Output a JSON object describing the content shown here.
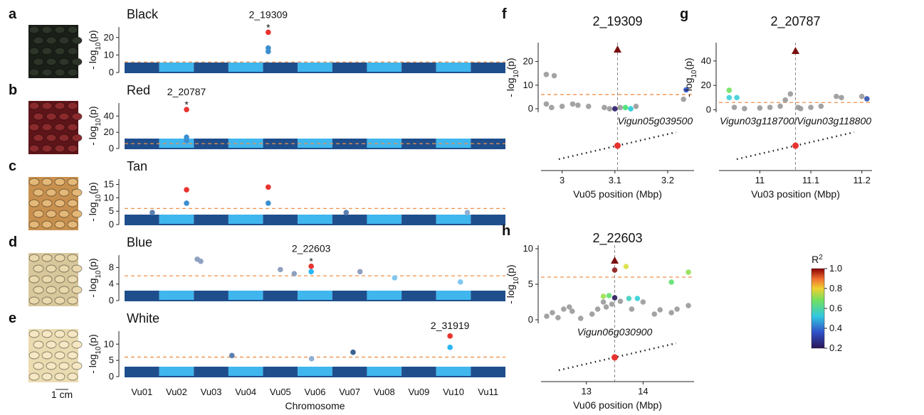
{
  "chart_data": [
    {
      "type": "manhattan",
      "panel": "a",
      "title": "Black",
      "ylabel": [
        "- log",
        "10",
        "(p)"
      ],
      "ylim": [
        0,
        26
      ],
      "yticks": [
        0,
        10,
        20
      ],
      "threshold": 6,
      "x": [
        4.15,
        4.15,
        4.15
      ],
      "values": [
        23,
        14,
        12
      ],
      "colors": [
        "#e8332e",
        "#3b8fd0",
        "#3b8fd0"
      ],
      "peak_label": "2_19309",
      "peak_marker": "*"
    },
    {
      "type": "manhattan",
      "panel": "b",
      "title": "Red",
      "ylabel": [
        "- log",
        "10",
        "(p)"
      ],
      "ylim": [
        0,
        56
      ],
      "yticks": [
        0,
        20,
        40
      ],
      "threshold": 6,
      "x": [
        1.79,
        1.79,
        1.79
      ],
      "values": [
        48,
        14,
        10
      ],
      "colors": [
        "#e8332e",
        "#3b8fd0",
        "#3b8fd0"
      ],
      "peak_label": "2_20787",
      "peak_marker": "*"
    },
    {
      "type": "manhattan",
      "panel": "c",
      "title": "Tan",
      "ylabel": [
        "- log",
        "10",
        "(p)"
      ],
      "ylim": [
        0,
        17
      ],
      "yticks": [
        0,
        5,
        10,
        15
      ],
      "threshold": 6,
      "x": [
        1.79,
        4.15,
        1.79,
        4.15,
        0.8,
        6.4,
        9.9
      ],
      "values": [
        13,
        14,
        8,
        8,
        4.5,
        4.5,
        4.5
      ],
      "colors": [
        "#e8332e",
        "#e8332e",
        "#3b8fd0",
        "#3b8fd0",
        "#5b7fb0",
        "#5b7fb0",
        "#8fb0d0"
      ]
    },
    {
      "type": "manhattan",
      "panel": "d",
      "title": "Blue",
      "ylabel": [
        "- log",
        "10",
        "(p)"
      ],
      "ylim": [
        0,
        11
      ],
      "yticks": [
        0,
        4,
        8
      ],
      "threshold": 6,
      "x": [
        5.39,
        5.39,
        2.1,
        2.2,
        4.5,
        4.9,
        6.8,
        7.8,
        9.7
      ],
      "values": [
        8.3,
        7,
        10,
        9.5,
        7.5,
        6.5,
        7,
        5.5,
        4.5
      ],
      "colors": [
        "#e8332e",
        "#29b6f6",
        "#8fa0c0",
        "#8fa0c0",
        "#8fa0c0",
        "#8fa0c0",
        "#8fa0c0",
        "#7fc8f0",
        "#7fc8f0"
      ],
      "peak_label": "2_22603",
      "peak_marker": "*"
    },
    {
      "type": "manhattan",
      "panel": "e",
      "title": "White",
      "ylabel": [
        "- log",
        "10",
        "(p)"
      ],
      "ylim": [
        0,
        14
      ],
      "yticks": [
        0,
        5,
        10
      ],
      "threshold": 6,
      "x": [
        9.4,
        9.4,
        3.1,
        6.6,
        5.4
      ],
      "values": [
        12.5,
        9,
        6.5,
        7.5,
        5.5
      ],
      "colors": [
        "#e8332e",
        "#29b6f6",
        "#5b7fb0",
        "#3a6090",
        "#8fb0d0"
      ],
      "peak_label": "2_31919",
      "categories": [
        "Vu01",
        "Vu02",
        "Vu03",
        "Vu04",
        "Vu05",
        "Vu06",
        "Vu07",
        "Vu08",
        "Vu09",
        "Vu10",
        "Vu11"
      ],
      "xlabel": "Chromosome"
    },
    {
      "type": "regional",
      "panel": "f",
      "title": "2_19309",
      "ylabel": [
        "- log",
        "10",
        "(p)"
      ],
      "xlabel": "Vu05 position (Mbp)",
      "gene": "Vigun05g039500",
      "xlim": [
        2.96,
        3.25
      ],
      "xticks": [
        3,
        3.1,
        3.2
      ],
      "ylim": [
        -1.5,
        28
      ],
      "yticks": [
        0,
        10,
        20
      ],
      "threshold": 6,
      "lead": {
        "x": 3.105,
        "value": 25,
        "color": "#7a1010"
      },
      "x": [
        2.97,
        2.985,
        2.97,
        2.98,
        3.0,
        3.02,
        3.03,
        3.05,
        3.08,
        3.09,
        3.11,
        3.14,
        3.23,
        3.235,
        3.1,
        3.13,
        3.12
      ],
      "values": [
        14.5,
        14,
        2,
        0.5,
        1,
        2,
        1.5,
        1,
        0.5,
        0,
        0.5,
        1,
        4,
        8,
        0,
        0,
        0.5
      ],
      "colors": [
        "#999999",
        "#999999",
        "#999999",
        "#999999",
        "#999999",
        "#999999",
        "#999999",
        "#999999",
        "#999999",
        "#999999",
        "#999999",
        "#999999",
        "#999999",
        "#3050c8",
        "#2a1a6a",
        "#28c8d8",
        "#40e070"
      ]
    },
    {
      "type": "regional",
      "panel": "g",
      "title": "2_20787",
      "ylabel": [
        "- log",
        "10",
        "(p)"
      ],
      "xlabel": "Vu03 position (Mbp)",
      "gene": "Vigun03g118700/Vigun03g118800",
      "xlim": [
        10.92,
        11.22
      ],
      "xticks": [
        11,
        11.1,
        11.2
      ],
      "ylim": [
        -2,
        55
      ],
      "yticks": [
        0,
        20,
        40
      ],
      "threshold": 6,
      "lead": {
        "x": 11.07,
        "value": 48,
        "color": "#7a1010"
      },
      "x": [
        10.95,
        10.97,
        11.0,
        11.02,
        11.04,
        11.05,
        11.06,
        11.075,
        11.08,
        11.1,
        11.12,
        11.15,
        11.16,
        11.2,
        10.94,
        10.94,
        10.955,
        11.21
      ],
      "values": [
        2,
        1,
        1.5,
        2,
        3,
        8,
        13,
        2,
        1,
        2,
        3,
        11,
        10,
        11,
        16,
        10,
        10,
        9
      ],
      "colors": [
        "#999999",
        "#999999",
        "#999999",
        "#999999",
        "#999999",
        "#999999",
        "#999999",
        "#999999",
        "#999999",
        "#999999",
        "#999999",
        "#999999",
        "#999999",
        "#999999",
        "#6fe060",
        "#3dd0d8",
        "#3dd0d8",
        "#3050b0"
      ]
    },
    {
      "type": "regional",
      "panel": "h",
      "title": "2_22603",
      "ylabel": [
        "- log",
        "10",
        "(p)"
      ],
      "xlabel": "Vu06 position (Mbp)",
      "gene": "Vigun06g030900",
      "xlim": [
        12.2,
        14.9
      ],
      "xticks": [
        13,
        14
      ],
      "ylim": [
        -0.5,
        10.5
      ],
      "yticks": [
        0,
        5,
        10
      ],
      "threshold": 6,
      "lead": {
        "x": 13.5,
        "value": 8.3,
        "color": "#7a1010"
      },
      "x": [
        12.3,
        12.4,
        12.5,
        12.6,
        12.7,
        12.75,
        12.9,
        13.1,
        13.2,
        13.3,
        13.35,
        13.45,
        13.6,
        13.8,
        14.0,
        14.2,
        14.3,
        14.5,
        14.6,
        14.8,
        13.5,
        13.7,
        14.8,
        14.5,
        13.3,
        13.4,
        13.75,
        13.9,
        13.5
      ],
      "values": [
        0.5,
        1,
        0.3,
        1.5,
        1.8,
        1.2,
        0.2,
        0.8,
        1.5,
        2.5,
        1.8,
        2.2,
        2.6,
        1.5,
        2.5,
        0.8,
        1.4,
        1,
        1.5,
        2,
        7,
        7.5,
        6.7,
        5.3,
        3.3,
        3.4,
        3,
        3,
        3.1
      ],
      "colors": [
        "#999999",
        "#999999",
        "#999999",
        "#999999",
        "#999999",
        "#999999",
        "#999999",
        "#999999",
        "#999999",
        "#999999",
        "#999999",
        "#999999",
        "#999999",
        "#999999",
        "#999999",
        "#999999",
        "#999999",
        "#999999",
        "#999999",
        "#999999",
        "#8b1a1a",
        "#d8e040",
        "#8ee050",
        "#60e070",
        "#9ce050",
        "#60e070",
        "#3dd0c0",
        "#30d0d8",
        "#2a1a5a"
      ]
    },
    {
      "type": "colorbar",
      "title": [
        "R",
        "2"
      ],
      "ylim": [
        0.2,
        1.0
      ],
      "yticks": [
        0.2,
        0.4,
        0.6,
        0.8,
        {
          "value": 1.0,
          "label": "1.0"
        }
      ]
    }
  ],
  "scale_bar": "1 cm"
}
